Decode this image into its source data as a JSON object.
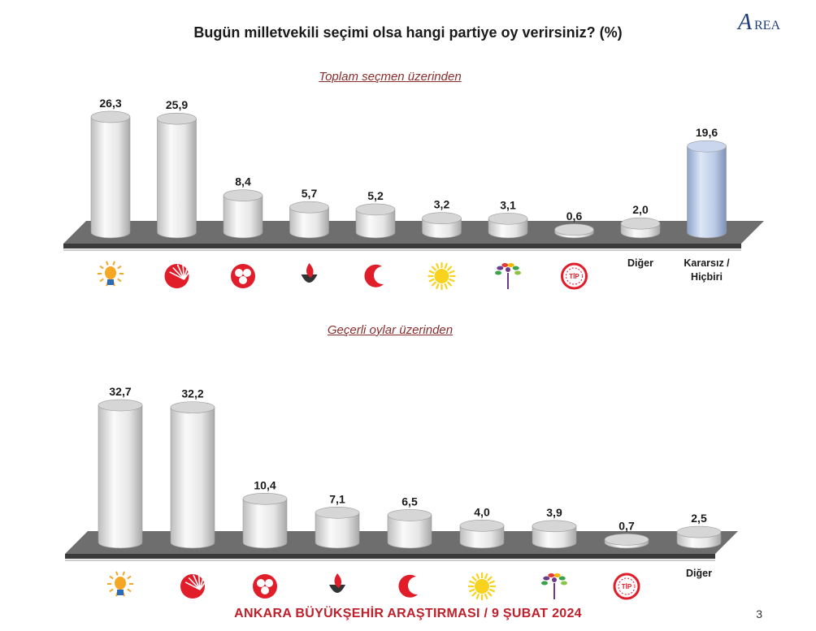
{
  "title": "Bugün milletvekili seçimi olsa hangi partiye oy verirsiniz? (%)",
  "logo_text": "AREA",
  "footer": "ANKARA BÜYÜKŞEHİR ARAŞTIRMASI / 9 ŞUBAT 2024",
  "page_number": "3",
  "colors": {
    "bar": "#e8e8e8",
    "highlight_bar": "#b8c8e6",
    "floor": "#6e6e6e",
    "subtitle": "#8b2d2d",
    "footer": "#c0202a"
  },
  "chart_data": [
    {
      "type": "bar",
      "title": "Toplam seçmen üzerinden",
      "categories": [
        "akp-logo",
        "chp-logo",
        "mhp-logo",
        "iyi-logo",
        "yrp-logo",
        "zp-logo",
        "dem-logo",
        "tip-logo",
        "Diğer",
        "Kararsız / Hiçbiri"
      ],
      "category_labels": [
        "",
        "",
        "",
        "",
        "",
        "",
        "",
        "",
        "Diğer",
        "Kararsız / Hiçbiri"
      ],
      "value_labels": [
        "26,3",
        "25,9",
        "8,4",
        "5,7",
        "5,2",
        "3,2",
        "3,1",
        "0,6",
        "2,0",
        "19,6"
      ],
      "values": [
        26.3,
        25.9,
        8.4,
        5.7,
        5.2,
        3.2,
        3.1,
        0.6,
        2.0,
        19.6
      ],
      "highlight_index": 9,
      "ylim": [
        0,
        30
      ],
      "grid": false,
      "legend": "none"
    },
    {
      "type": "bar",
      "title": "Geçerli oylar üzerinden",
      "categories": [
        "akp-logo",
        "chp-logo",
        "mhp-logo",
        "iyi-logo",
        "yrp-logo",
        "zp-logo",
        "dem-logo",
        "tip-logo",
        "Diğer"
      ],
      "category_labels": [
        "",
        "",
        "",
        "",
        "",
        "",
        "",
        "",
        "Diğer"
      ],
      "value_labels": [
        "32,7",
        "32,2",
        "10,4",
        "7,1",
        "6,5",
        "4,0",
        "3,9",
        "0,7",
        "2,5"
      ],
      "values": [
        32.7,
        32.2,
        10.4,
        7.1,
        6.5,
        4.0,
        3.9,
        0.7,
        2.5
      ],
      "highlight_index": -1,
      "ylim": [
        0,
        36
      ],
      "grid": false,
      "legend": "none"
    }
  ]
}
